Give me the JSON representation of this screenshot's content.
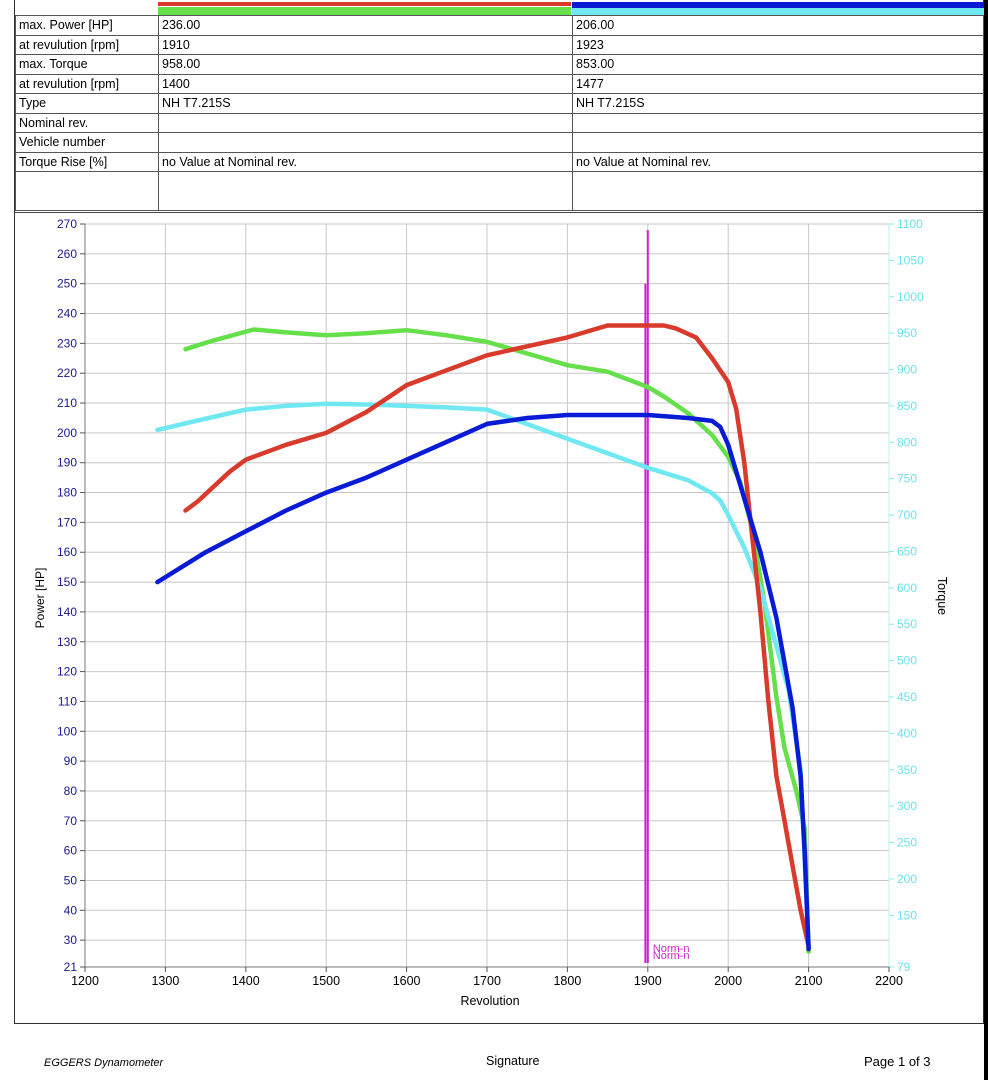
{
  "header_colors": {
    "engine1": [
      "#d83a2c",
      "#66e04a"
    ],
    "engine2": [
      "#0a1bd6",
      "#6fe8f2"
    ]
  },
  "info_table": {
    "rows": [
      {
        "label": "max. Power [HP]",
        "v1": "236.00",
        "v2": "206.00"
      },
      {
        "label": "at revulution [rpm]",
        "v1": "1910",
        "v2": "1923"
      },
      {
        "label": "max. Torque",
        "v1": "958.00",
        "v2": "853.00"
      },
      {
        "label": "at revulution [rpm]",
        "v1": "1400",
        "v2": "1477"
      },
      {
        "label": "Type",
        "v1": "NH T7.215S",
        "v2": "NH T7.215S"
      },
      {
        "label": "Nominal rev.",
        "v1": "",
        "v2": ""
      },
      {
        "label": "Vehicle number",
        "v1": "",
        "v2": ""
      },
      {
        "label": "Torque Rise [%]",
        "v1": "no Value at Nominal rev.",
        "v2": "no Value at Nominal rev."
      },
      {
        "label": "",
        "v1": "",
        "v2": ""
      }
    ]
  },
  "chart_data": {
    "type": "line",
    "xlabel": "Revolution",
    "ylabel": "Power [HP]",
    "y2label": "Torque",
    "xlim": [
      1200,
      2200
    ],
    "ylim": [
      21,
      270
    ],
    "y2lim": [
      79,
      1100
    ],
    "x_ticks": [
      1200,
      1300,
      1400,
      1500,
      1600,
      1700,
      1800,
      1900,
      2000,
      2100,
      2200
    ],
    "x_tick_labels": [
      "1200",
      "1300",
      "1400",
      "1500",
      "1600",
      "1700",
      "1800",
      "1900",
      "2000",
      "2100",
      "2200"
    ],
    "y_ticks": [
      21,
      30,
      40,
      50,
      60,
      70,
      80,
      90,
      100,
      110,
      120,
      130,
      140,
      150,
      160,
      170,
      180,
      190,
      200,
      210,
      220,
      230,
      240,
      250,
      260,
      270
    ],
    "y_tick_labels": [
      "21",
      "30",
      "40",
      "50",
      "60",
      "70",
      "80",
      "90",
      "100",
      "110",
      "120",
      "130",
      "140",
      "150",
      "160",
      "170",
      "180",
      "190",
      "200",
      "210",
      "220",
      "230",
      "240",
      "250",
      "260",
      "270"
    ],
    "y2_ticks": [
      79,
      150,
      200,
      250,
      300,
      350,
      400,
      450,
      500,
      550,
      600,
      650,
      700,
      750,
      800,
      850,
      900,
      950,
      1000,
      1050,
      1100
    ],
    "y2_tick_labels": [
      "79",
      "150",
      "200",
      "250",
      "300",
      "350",
      "400",
      "450",
      "500",
      "550",
      "600",
      "650",
      "700",
      "750",
      "800",
      "850",
      "900",
      "950",
      "1000",
      "1050",
      "1100"
    ],
    "grid": true,
    "series": [
      {
        "axis": "left",
        "color": "#d83a2c",
        "points": [
          [
            1325,
            174
          ],
          [
            1340,
            177
          ],
          [
            1360,
            182
          ],
          [
            1380,
            187
          ],
          [
            1400,
            191
          ],
          [
            1450,
            196
          ],
          [
            1500,
            200
          ],
          [
            1550,
            207
          ],
          [
            1600,
            216
          ],
          [
            1650,
            221
          ],
          [
            1700,
            226
          ],
          [
            1750,
            229
          ],
          [
            1800,
            232
          ],
          [
            1850,
            236
          ],
          [
            1900,
            236
          ],
          [
            1920,
            236
          ],
          [
            1935,
            235
          ],
          [
            1960,
            232
          ],
          [
            1980,
            225
          ],
          [
            2000,
            217
          ],
          [
            2010,
            208
          ],
          [
            2020,
            190
          ],
          [
            2030,
            165
          ],
          [
            2040,
            140
          ],
          [
            2050,
            110
          ],
          [
            2060,
            85
          ],
          [
            2070,
            70
          ],
          [
            2080,
            55
          ],
          [
            2090,
            40
          ],
          [
            2100,
            28
          ]
        ]
      },
      {
        "axis": "left",
        "color": "#0a1bd6",
        "points": [
          [
            1290,
            150
          ],
          [
            1350,
            160
          ],
          [
            1400,
            167
          ],
          [
            1450,
            174
          ],
          [
            1500,
            180
          ],
          [
            1550,
            185
          ],
          [
            1600,
            191
          ],
          [
            1650,
            197
          ],
          [
            1700,
            203
          ],
          [
            1750,
            205
          ],
          [
            1800,
            206
          ],
          [
            1850,
            206
          ],
          [
            1900,
            206
          ],
          [
            1950,
            205
          ],
          [
            1980,
            204
          ],
          [
            1990,
            202
          ],
          [
            2000,
            196
          ],
          [
            2020,
            178
          ],
          [
            2040,
            160
          ],
          [
            2060,
            138
          ],
          [
            2080,
            108
          ],
          [
            2090,
            85
          ],
          [
            2095,
            60
          ],
          [
            2100,
            27
          ]
        ]
      },
      {
        "axis": "right",
        "color": "#66e04a",
        "points": [
          [
            1325,
            928
          ],
          [
            1360,
            940
          ],
          [
            1410,
            955
          ],
          [
            1450,
            951
          ],
          [
            1500,
            947
          ],
          [
            1550,
            950
          ],
          [
            1600,
            954
          ],
          [
            1650,
            947
          ],
          [
            1700,
            938
          ],
          [
            1750,
            922
          ],
          [
            1800,
            906
          ],
          [
            1850,
            897
          ],
          [
            1900,
            876
          ],
          [
            1920,
            863
          ],
          [
            1950,
            840
          ],
          [
            1980,
            810
          ],
          [
            2000,
            780
          ],
          [
            2015,
            745
          ],
          [
            2030,
            680
          ],
          [
            2045,
            580
          ],
          [
            2060,
            450
          ],
          [
            2070,
            380
          ],
          [
            2085,
            320
          ],
          [
            2095,
            270
          ],
          [
            2100,
            100
          ]
        ]
      },
      {
        "axis": "right",
        "color": "#6fe8f2",
        "points": [
          [
            1290,
            817
          ],
          [
            1340,
            830
          ],
          [
            1400,
            845
          ],
          [
            1450,
            850
          ],
          [
            1500,
            853
          ],
          [
            1550,
            852
          ],
          [
            1600,
            850
          ],
          [
            1650,
            848
          ],
          [
            1700,
            845
          ],
          [
            1750,
            825
          ],
          [
            1800,
            805
          ],
          [
            1850,
            785
          ],
          [
            1900,
            765
          ],
          [
            1950,
            748
          ],
          [
            1980,
            730
          ],
          [
            1990,
            720
          ],
          [
            2000,
            700
          ],
          [
            2020,
            655
          ],
          [
            2040,
            600
          ],
          [
            2060,
            520
          ],
          [
            2075,
            460
          ],
          [
            2090,
            350
          ],
          [
            2100,
            105
          ]
        ]
      }
    ],
    "nominal_markers": [
      {
        "x": 1897,
        "y_top": 250,
        "color": "#cc22cc"
      },
      {
        "x": 1900,
        "y_top": 268,
        "color": "#cc22cc"
      }
    ],
    "nominal_labels": [
      "Norm-n",
      "Norm-n"
    ]
  },
  "footer": {
    "left": "EGGERS Dynamometer",
    "center": "Signature",
    "right": "Page 1 of 3"
  }
}
